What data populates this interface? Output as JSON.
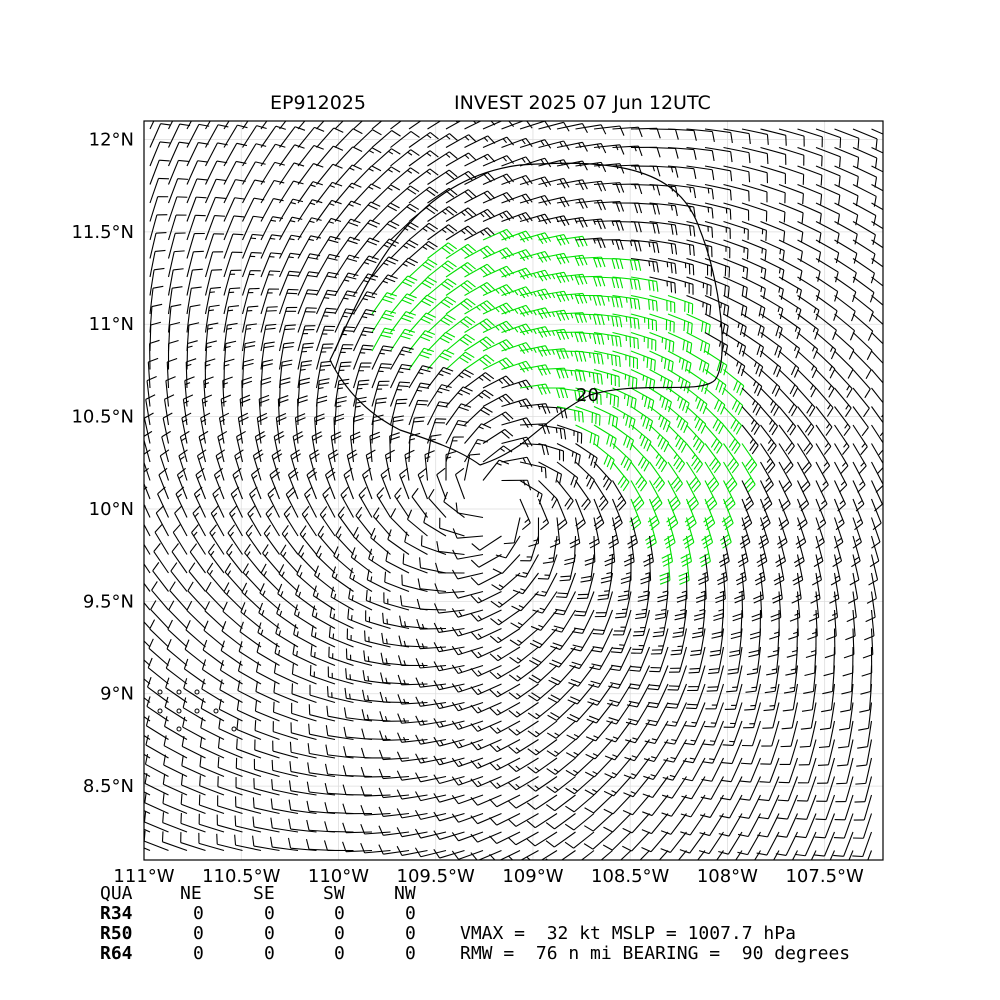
{
  "header": {
    "storm_id": "EP912025",
    "storm_title": "INVEST 2025 07 Jun 12UTC"
  },
  "chart_data": {
    "type": "wind-barb",
    "lon_range": [
      -111.0,
      -107.2
    ],
    "lat_range": [
      8.1,
      12.1
    ],
    "x_ticks": [
      {
        "value": -111.0,
        "label": "111°W"
      },
      {
        "value": -110.5,
        "label": "110.5°W"
      },
      {
        "value": -110.0,
        "label": "110°W"
      },
      {
        "value": -109.5,
        "label": "109.5°W"
      },
      {
        "value": -109.0,
        "label": "109°W"
      },
      {
        "value": -108.5,
        "label": "108.5°W"
      },
      {
        "value": -108.0,
        "label": "108°W"
      },
      {
        "value": -107.5,
        "label": "107.5°W"
      }
    ],
    "y_ticks": [
      {
        "value": 12.0,
        "label": "12°N"
      },
      {
        "value": 11.5,
        "label": "11.5°N"
      },
      {
        "value": 11.0,
        "label": "11°N"
      },
      {
        "value": 10.5,
        "label": "10.5°N"
      },
      {
        "value": 10.0,
        "label": "10°N"
      },
      {
        "value": 9.5,
        "label": "9.5°N"
      },
      {
        "value": 9.0,
        "label": "9°N"
      },
      {
        "value": 8.5,
        "label": "8.5°N"
      }
    ],
    "grid": true,
    "center": {
      "lon": -109.2,
      "lat": 10.05
    },
    "contours": [
      {
        "level": 20,
        "label": "20"
      }
    ],
    "barb_colors": {
      "normal": "#000000",
      "strong": "#00e000"
    },
    "strong_threshold_kt": 30
  },
  "table": {
    "header": {
      "qua": "QUA",
      "ne": "NE",
      "se": "SE",
      "sw": "SW",
      "nw": "NW"
    },
    "rows": [
      {
        "name": "R34",
        "ne": "0",
        "se": "0",
        "sw": "0",
        "nw": "0"
      },
      {
        "name": "R50",
        "ne": "0",
        "se": "0",
        "sw": "0",
        "nw": "0"
      },
      {
        "name": "R64",
        "ne": "0",
        "se": "0",
        "sw": "0",
        "nw": "0"
      }
    ]
  },
  "stats": {
    "line1": "VMAX =  32 kt MSLP = 1007.7 hPa",
    "line2": "RMW =  76 n mi BEARING =  90 degrees"
  }
}
